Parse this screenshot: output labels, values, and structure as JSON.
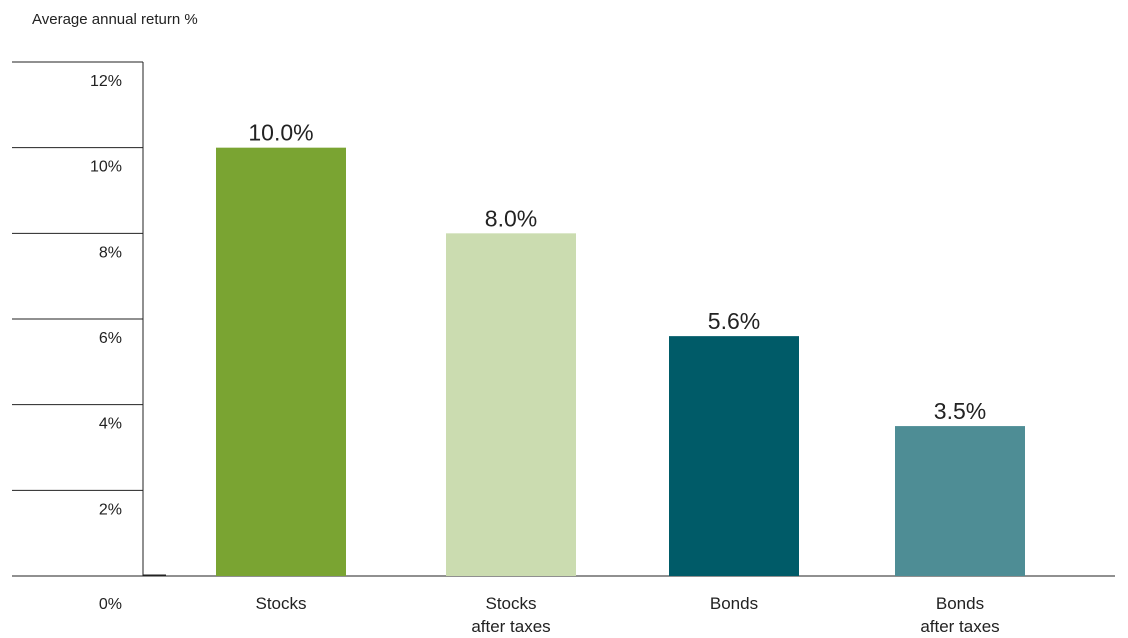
{
  "chart_data": {
    "type": "bar",
    "title": "",
    "ylabel": "Average annual return %",
    "xlabel": "",
    "ylim": [
      0,
      12
    ],
    "yticks": [
      0,
      2,
      4,
      6,
      8,
      10,
      12
    ],
    "ytick_labels": [
      "0%",
      "2%",
      "4%",
      "6%",
      "8%",
      "10%",
      "12%"
    ],
    "grid": "horizontal",
    "categories": [
      [
        "Stocks"
      ],
      [
        "Stocks",
        "after taxes"
      ],
      [
        "Bonds"
      ],
      [
        "Bonds",
        "after taxes"
      ]
    ],
    "values": [
      10.0,
      8.0,
      5.6,
      3.5
    ],
    "value_labels": [
      "10.0%",
      "8.0%",
      "5.6%",
      "3.5%"
    ],
    "colors": [
      "#7aa432",
      "#cbdcb0",
      "#005b68",
      "#4e8d95"
    ]
  }
}
